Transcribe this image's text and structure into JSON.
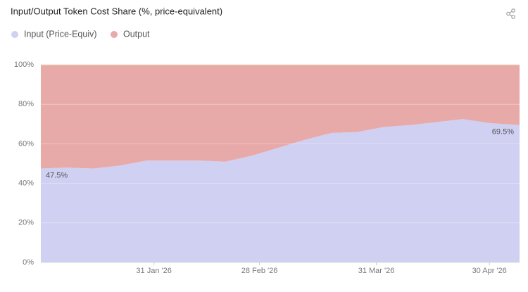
{
  "chart_data": {
    "type": "stacked_area",
    "title": "Input/Output Token Cost Share (%, price-equivalent)",
    "x": [
      "2026-01-01",
      "2026-01-08",
      "2026-01-15",
      "2026-01-22",
      "2026-01-29",
      "2026-02-05",
      "2026-02-12",
      "2026-02-19",
      "2026-02-26",
      "2026-03-05",
      "2026-03-12",
      "2026-03-19",
      "2026-03-26",
      "2026-04-02",
      "2026-04-09",
      "2026-04-16",
      "2026-04-23",
      "2026-04-30",
      "2026-05-08"
    ],
    "series": [
      {
        "name": "Input (Price-Equiv)",
        "color": "#cfd0f2",
        "values": [
          47.5,
          48,
          47.5,
          49,
          51.5,
          51.5,
          51.5,
          51,
          54,
          58,
          62,
          65.5,
          66,
          68.5,
          69.5,
          71,
          72.5,
          70.5,
          69.5
        ],
        "value_labels": [
          "47.5%",
          null,
          null,
          null,
          null,
          null,
          null,
          null,
          null,
          null,
          null,
          null,
          null,
          null,
          null,
          null,
          null,
          null,
          "69.5%"
        ]
      },
      {
        "name": "Output",
        "color": "#e8a9a9",
        "values": [
          52.5,
          52,
          52.5,
          51,
          48.5,
          48.5,
          48.5,
          49,
          46,
          42,
          38,
          34.5,
          34,
          31.5,
          30.5,
          29,
          27.5,
          29.5,
          30.5
        ]
      }
    ],
    "xlim": [
      "2026-01-01",
      "2026-05-08"
    ],
    "xticks": [
      {
        "value": "2026-01-31",
        "label": "31 Jan '26"
      },
      {
        "value": "2026-02-28",
        "label": "28 Feb '26"
      },
      {
        "value": "2026-03-31",
        "label": "31 Mar '26"
      },
      {
        "value": "2026-04-30",
        "label": "30 Apr '26"
      }
    ],
    "ylim": [
      0,
      100
    ],
    "yticks": [
      {
        "value": 0,
        "label": "0%"
      },
      {
        "value": 20,
        "label": "20%"
      },
      {
        "value": 40,
        "label": "40%"
      },
      {
        "value": 60,
        "label": "60%"
      },
      {
        "value": 80,
        "label": "80%"
      },
      {
        "value": 100,
        "label": "100%"
      }
    ],
    "grid": true
  }
}
